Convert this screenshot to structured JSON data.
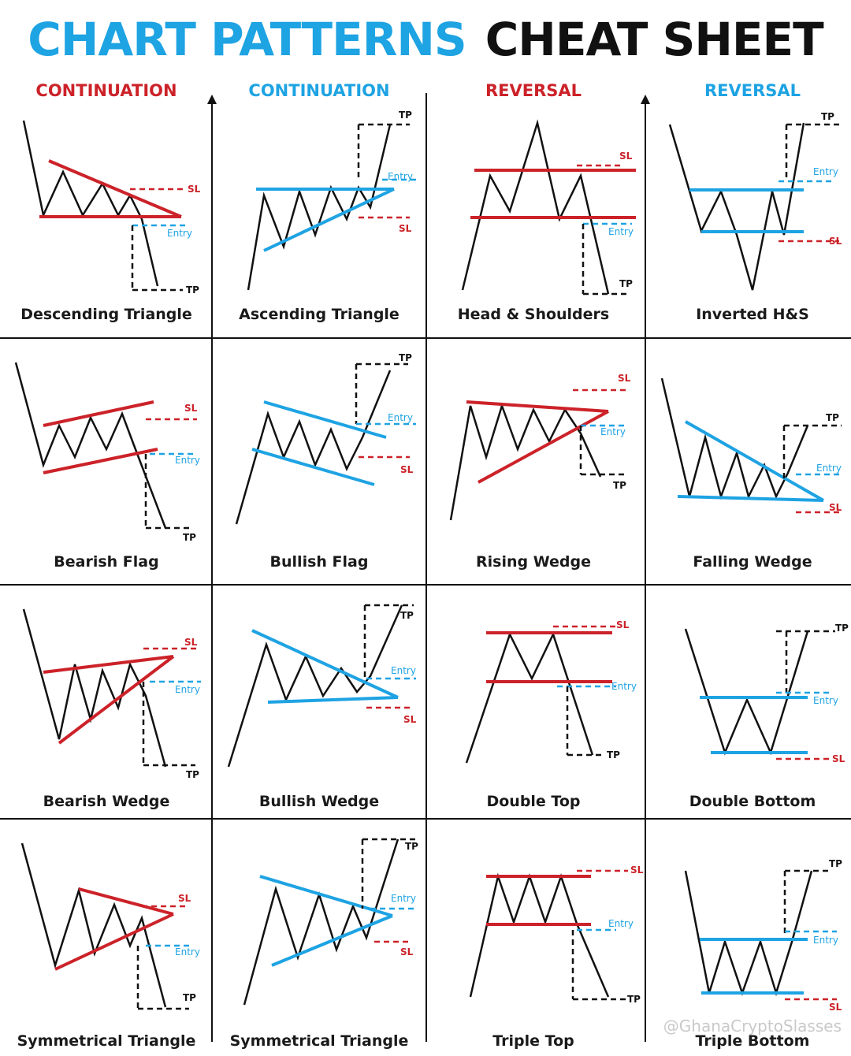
{
  "title": {
    "part1": "CHART PATTERNS",
    "part2": "CHEAT SHEET"
  },
  "colors": {
    "blue": "#1ea3e3",
    "red": "#cc2229",
    "black": "#111111"
  },
  "columns": [
    {
      "label": "CONTINUATION",
      "color": "#cc2229"
    },
    {
      "label": "CONTINUATION",
      "color": "#1ea3e3"
    },
    {
      "label": "REVERSAL",
      "color": "#cc2229"
    },
    {
      "label": "REVERSAL",
      "color": "#1ea3e3"
    }
  ],
  "labels": {
    "sl": "SL",
    "entry": "Entry",
    "tp": "TP"
  },
  "patterns": [
    "Descending Triangle",
    "Ascending Triangle",
    "Head & Shoulders",
    "Inverted H&S",
    "Bearish Flag",
    "Bullish Flag",
    "Rising Wedge",
    "Falling Wedge",
    "Bearish Wedge",
    "Bullish Wedge",
    "Double Top",
    "Double Bottom",
    "Symmetrical Triangle",
    "Symmetrical Triangle",
    "Triple Top",
    "Triple Bottom"
  ],
  "watermark": "@GhanaCryptoSlasses"
}
